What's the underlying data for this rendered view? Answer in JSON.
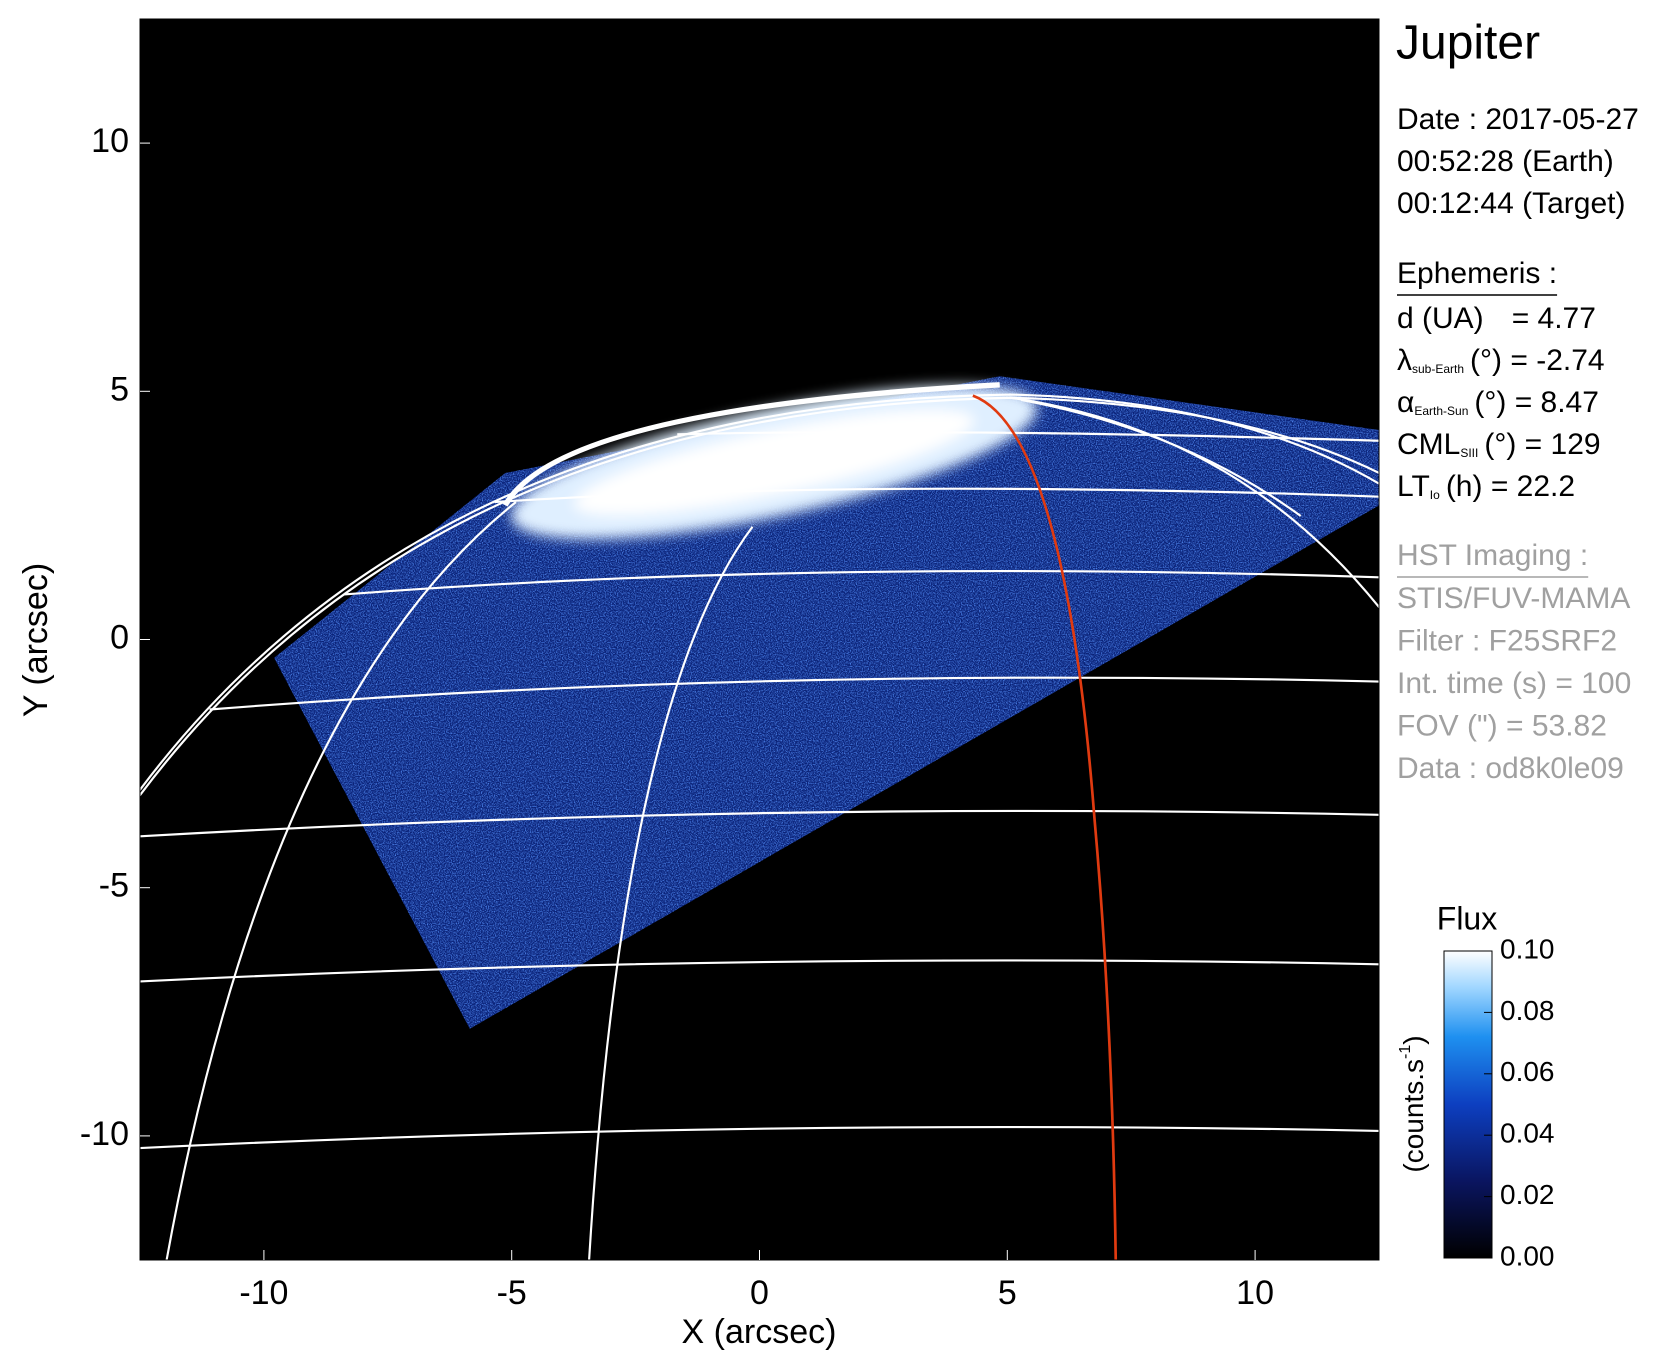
{
  "chart_data": {
    "type": "image",
    "xlabel": "X (arcsec)",
    "ylabel": "Y (arcsec)",
    "xlim": [
      -12.5,
      12.5
    ],
    "ylim": [
      -12.5,
      12.5
    ],
    "xticks": [
      -10,
      -5,
      0,
      5,
      10
    ],
    "yticks": [
      -10,
      -5,
      0,
      5,
      10
    ],
    "colorbar": {
      "title": "Flux",
      "label": {
        "text": "(counts.s",
        "sup": "-1",
        "end": ")"
      },
      "lim": [
        0,
        0.1
      ],
      "ticks": [
        {
          "value": 0,
          "label": "0.00"
        },
        0.02,
        0.04,
        0.06,
        0.08,
        {
          "value": 0.1,
          "label": "0.10"
        }
      ]
    },
    "panel": {
      "title": "Jupiter",
      "lines": [
        "Date : 2017-05-27",
        "00:52:28 (Earth)",
        "00:12:44 (Target)"
      ],
      "ephemeris": {
        "heading": "Ephemeris :",
        "rows": [
          {
            "label": "d (UA)",
            "rest": "= 4.77"
          },
          {
            "label": "λ",
            "sub": "sub-Earth",
            "rest": "(°) = -2.74"
          },
          {
            "label": "α",
            "sub": "Earth-Sun",
            "rest": "(°) = 8.47"
          },
          {
            "label": "CML",
            "sub": "SIII",
            "rest": "(°) = 129"
          },
          {
            "label": "LT",
            "sub": "Io",
            "rest": "(h) = 22.2"
          }
        ]
      },
      "imaging": {
        "heading": "HST Imaging :",
        "lines": [
          "STIS/FUV-MAMA",
          "Filter : F25SRF2",
          "Int. time (s) = 100",
          "FOV (\") = 53.82",
          "Data : od8k0le09"
        ]
      }
    }
  }
}
